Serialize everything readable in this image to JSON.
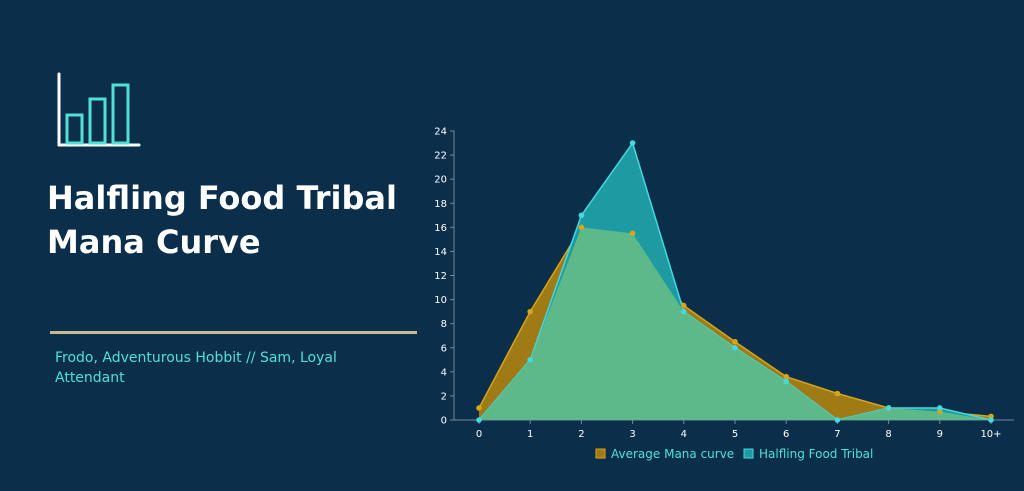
{
  "header": {
    "title": "Halfling Food Tribal Mana Curve",
    "subtitle": "Frodo, Adventurous Hobbit // Sam, Loyal Attendant"
  },
  "logo": {
    "icon": "bar-chart-icon",
    "color": "#4fe0d8"
  },
  "chart_data": {
    "type": "area",
    "categories": [
      "0",
      "1",
      "2",
      "3",
      "4",
      "5",
      "6",
      "7",
      "8",
      "9",
      "10+"
    ],
    "series": [
      {
        "name": "Average Mana curve",
        "values": [
          1,
          9,
          16,
          15.5,
          9.5,
          6.5,
          3.6,
          2.2,
          1,
          0.7,
          0.3
        ],
        "color": "#d4a514"
      },
      {
        "name": "Halfling Food Tribal",
        "values": [
          0,
          5,
          17,
          23,
          9,
          6,
          3.2,
          0,
          1,
          1,
          0
        ],
        "color": "#3fd3d8"
      }
    ],
    "yticks": [
      "0",
      "2",
      "4",
      "6",
      "8",
      "10",
      "12",
      "14",
      "16",
      "18",
      "20",
      "22",
      "24"
    ],
    "ylim": [
      0,
      24
    ],
    "legend_position": "bottom"
  }
}
